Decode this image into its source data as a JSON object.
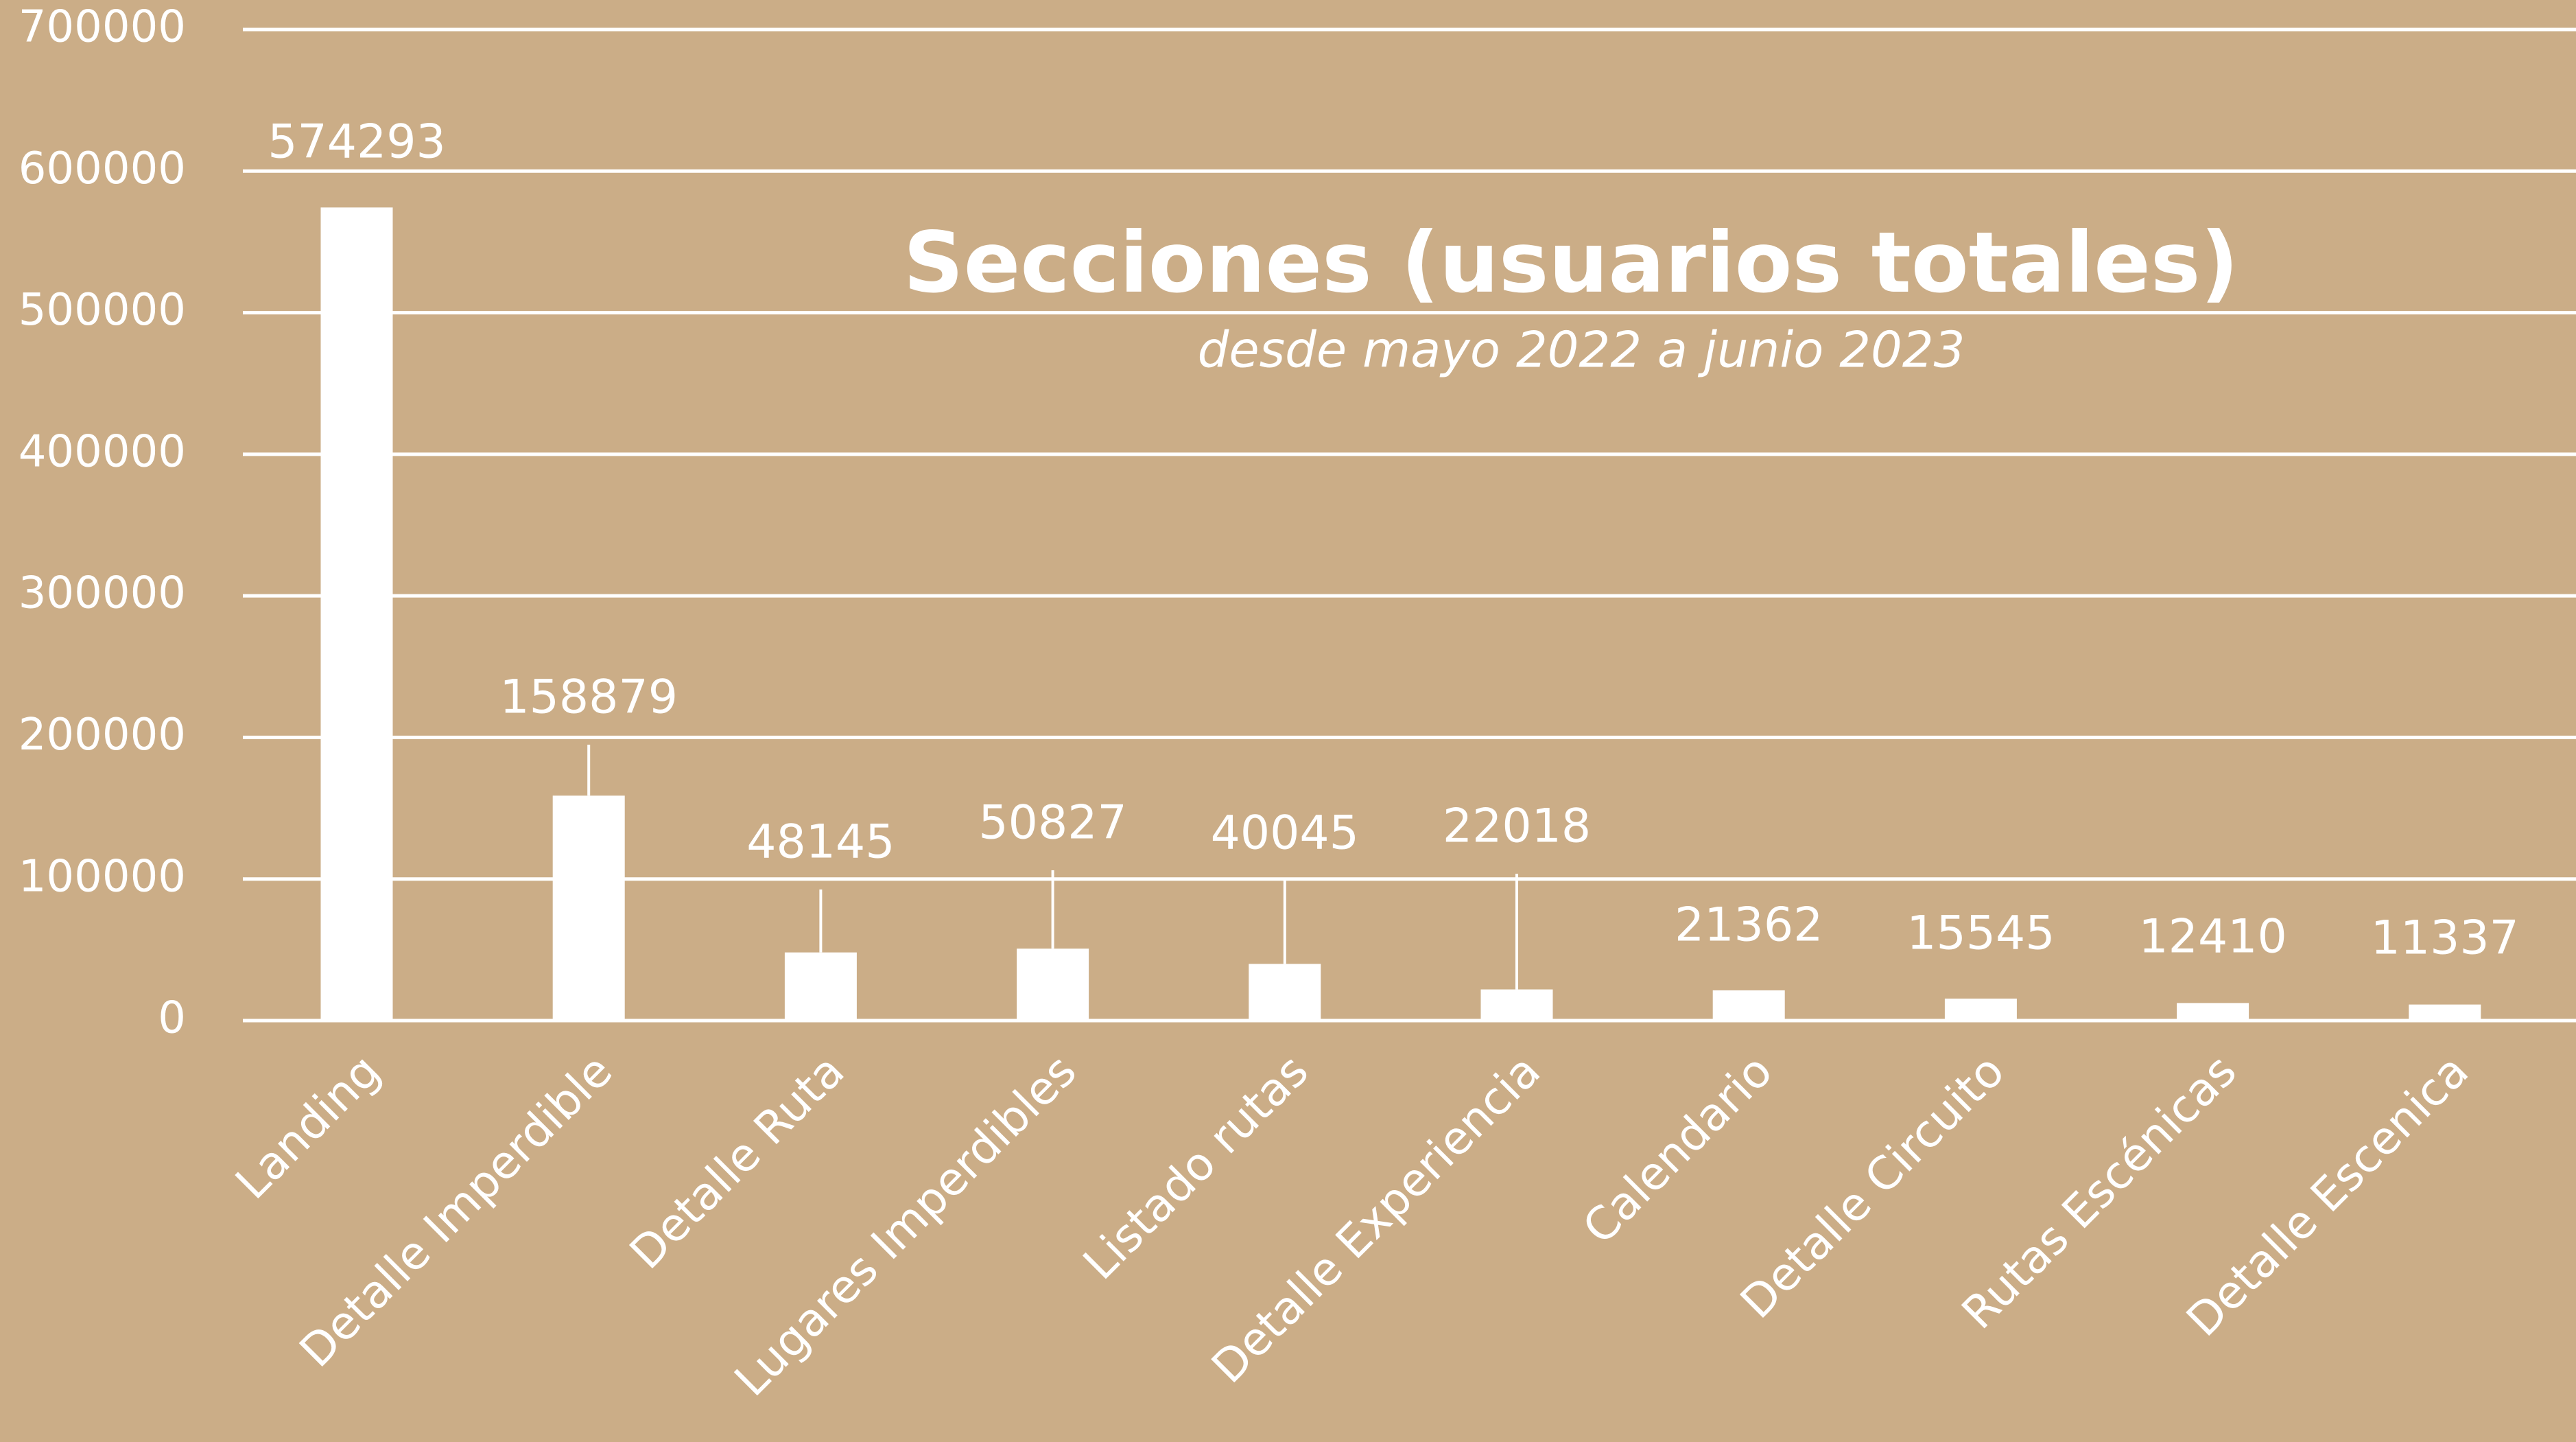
{
  "chart_data": {
    "type": "bar",
    "title": "Secciones (usuarios totales)",
    "subtitle": "desde mayo 2022 a junio 2023",
    "categories": [
      "Landing",
      "Detalle Imperdible",
      "Detalle Ruta",
      "Lugares Imperdibles",
      "Listado rutas",
      "Detalle Experiencia",
      "Calendario",
      "Detalle Circuito",
      "Rutas Escénicas",
      "Detalle Escenica"
    ],
    "values": [
      574293,
      158879,
      48145,
      50827,
      40045,
      22018,
      21362,
      15545,
      12410,
      11337
    ],
    "color": "#ffffff",
    "ylim": [
      0,
      700000
    ],
    "yticks": [
      0,
      100000,
      200000,
      300000,
      400000,
      500000,
      600000,
      700000
    ],
    "grid": true
  }
}
